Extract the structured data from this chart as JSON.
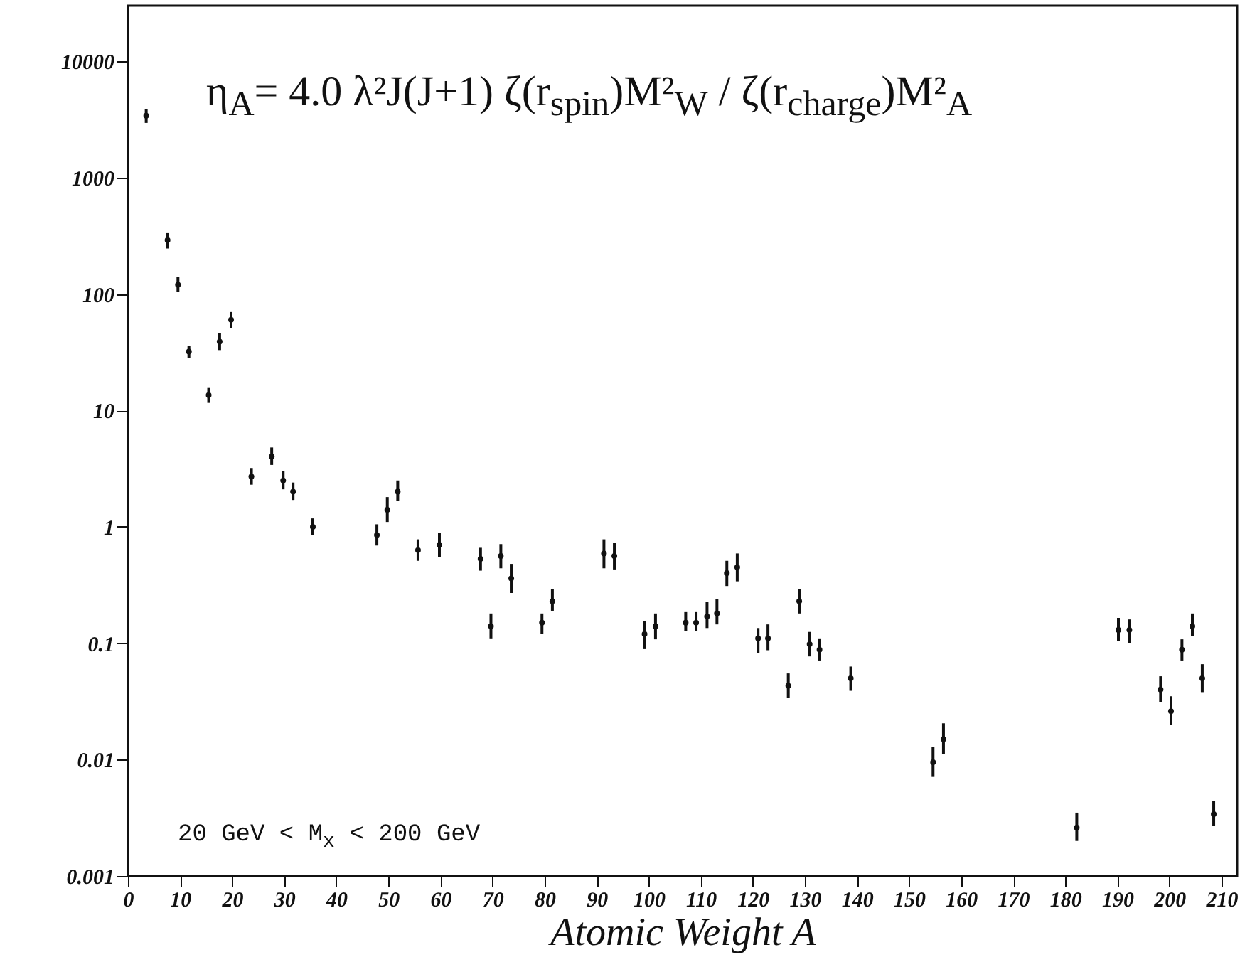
{
  "chart_data": {
    "type": "scatter",
    "xlabel": "Atomic Weight A",
    "log": "y",
    "grid": false,
    "marker": "circle",
    "color": "#111111",
    "annotations": [
      "η$_{A}$= 4.0 λ²J(J+1) ζ(r$_{spin}$)M²$_{W}$ / ζ(r$_{charge}$)M²$_{A}$",
      "20 GeV < M$_{x}$ < 200 GeV"
    ],
    "xlim": [
      0,
      213
    ],
    "xticks": [
      0,
      10,
      20,
      30,
      40,
      50,
      60,
      70,
      80,
      90,
      100,
      110,
      120,
      130,
      140,
      150,
      160,
      170,
      180,
      190,
      200,
      210
    ],
    "ylim": [
      0.001,
      30000
    ],
    "yticks": [
      0.001,
      0.01,
      0.1,
      1,
      10,
      100,
      1000,
      10000
    ],
    "x": [
      3.5,
      7.6,
      9.6,
      11.7,
      15.5,
      17.6,
      19.8,
      23.7,
      27.6,
      29.8,
      31.7,
      35.5,
      47.8,
      49.8,
      51.8,
      55.7,
      59.8,
      67.7,
      69.7,
      71.6,
      73.6,
      79.5,
      81.5,
      91.4,
      93.4,
      99.2,
      101.3,
      107.1,
      109.1,
      111.2,
      113.1,
      115.0,
      117.0,
      121.0,
      122.9,
      126.8,
      128.9,
      130.9,
      132.8,
      138.8,
      154.6,
      156.6,
      182.2,
      190.2,
      192.3,
      198.3,
      200.3,
      202.4,
      204.4,
      206.3,
      208.5
    ],
    "values": [
      3400,
      290,
      120,
      32,
      13.5,
      39,
      60,
      2.7,
      4.0,
      2.5,
      2.0,
      1.0,
      0.85,
      1.4,
      2.0,
      0.63,
      0.7,
      0.53,
      0.14,
      0.56,
      0.36,
      0.15,
      0.23,
      0.59,
      0.56,
      0.12,
      0.14,
      0.15,
      0.15,
      0.17,
      0.18,
      0.4,
      0.45,
      0.11,
      0.11,
      0.043,
      0.23,
      0.098,
      0.088,
      0.05,
      0.0095,
      0.015,
      0.0026,
      0.13,
      0.13,
      0.04,
      0.026,
      0.088,
      0.14,
      0.05,
      0.0034
    ],
    "errors": [
      [
        2950,
        3900
      ],
      [
        246,
        338
      ],
      [
        104,
        141
      ],
      [
        28,
        36
      ],
      [
        11.6,
        15.8
      ],
      [
        33,
        46
      ],
      [
        51,
        70
      ],
      [
        2.3,
        3.2
      ],
      [
        3.4,
        4.8
      ],
      [
        2.1,
        3.0
      ],
      [
        1.7,
        2.4
      ],
      [
        0.85,
        1.18
      ],
      [
        0.69,
        1.05
      ],
      [
        1.1,
        1.8
      ],
      [
        1.66,
        2.5
      ],
      [
        0.51,
        0.78
      ],
      [
        0.55,
        0.89
      ],
      [
        0.42,
        0.66
      ],
      [
        0.11,
        0.18
      ],
      [
        0.44,
        0.71
      ],
      [
        0.27,
        0.48
      ],
      [
        0.12,
        0.18
      ],
      [
        0.19,
        0.29
      ],
      [
        0.44,
        0.78
      ],
      [
        0.43,
        0.73
      ],
      [
        0.089,
        0.155
      ],
      [
        0.108,
        0.18
      ],
      [
        0.128,
        0.185
      ],
      [
        0.128,
        0.185
      ],
      [
        0.135,
        0.225
      ],
      [
        0.145,
        0.24
      ],
      [
        0.31,
        0.51
      ],
      [
        0.34,
        0.59
      ],
      [
        0.082,
        0.135
      ],
      [
        0.087,
        0.145
      ],
      [
        0.034,
        0.055
      ],
      [
        0.18,
        0.29
      ],
      [
        0.077,
        0.125
      ],
      [
        0.071,
        0.11
      ],
      [
        0.039,
        0.063
      ],
      [
        0.0071,
        0.0128
      ],
      [
        0.0111,
        0.0205
      ],
      [
        0.002,
        0.0035
      ],
      [
        0.105,
        0.165
      ],
      [
        0.1,
        0.16
      ],
      [
        0.031,
        0.052
      ],
      [
        0.02,
        0.035
      ],
      [
        0.071,
        0.108
      ],
      [
        0.115,
        0.18
      ],
      [
        0.038,
        0.066
      ],
      [
        0.0027,
        0.0044
      ]
    ]
  }
}
